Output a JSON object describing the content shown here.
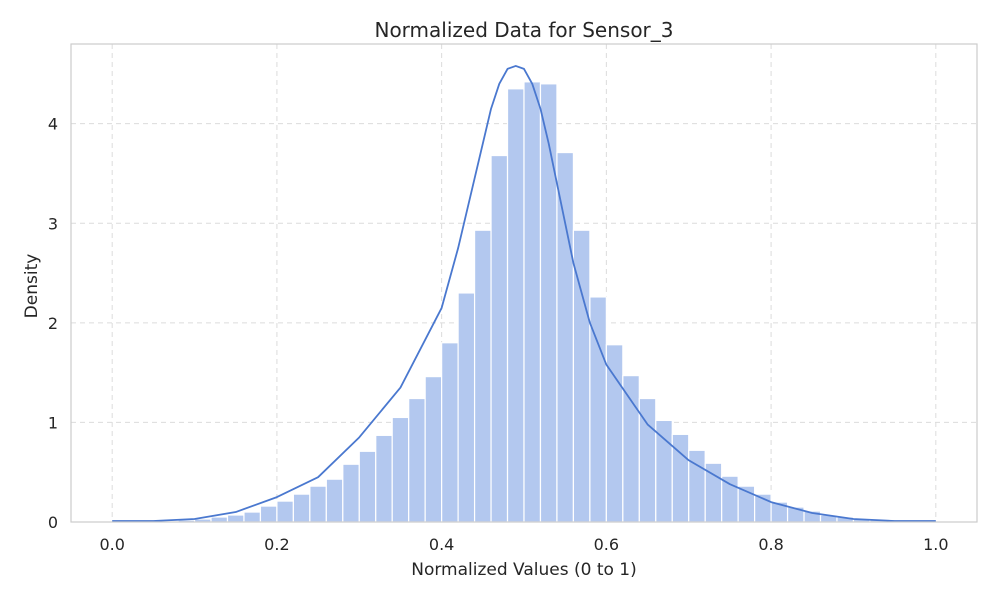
{
  "chart_data": {
    "type": "bar",
    "title": "Normalized Data for Sensor_3",
    "xlabel": "Normalized Values (0 to 1)",
    "ylabel": "Density",
    "xlim": [
      -0.05,
      1.05
    ],
    "ylim": [
      0,
      4.8
    ],
    "x_ticks": [
      0.0,
      0.2,
      0.4,
      0.6,
      0.8,
      1.0
    ],
    "x_tick_labels": [
      "0.0",
      "0.2",
      "0.4",
      "0.6",
      "0.8",
      "1.0"
    ],
    "y_ticks": [
      0,
      1,
      2,
      3,
      4
    ],
    "y_tick_labels": [
      "0",
      "1",
      "2",
      "3",
      "4"
    ],
    "grid": true,
    "colors": {
      "bar": "#b3c8ef",
      "bar_edge": "#ffffff",
      "kde": "#4a78cf",
      "grid": "#dcdcdc",
      "frame": "#cccccc"
    },
    "histogram": {
      "bin_edges": [
        0.0,
        0.02,
        0.04,
        0.06,
        0.08,
        0.1,
        0.12,
        0.14,
        0.16,
        0.18,
        0.2,
        0.22,
        0.24,
        0.26,
        0.28,
        0.3,
        0.32,
        0.34,
        0.36,
        0.38,
        0.4,
        0.42,
        0.44,
        0.46,
        0.48,
        0.5,
        0.52,
        0.54,
        0.56,
        0.58,
        0.6,
        0.62,
        0.64,
        0.66,
        0.68,
        0.7,
        0.72,
        0.74,
        0.76,
        0.78,
        0.8,
        0.82,
        0.84,
        0.86,
        0.88,
        0.9,
        0.92,
        0.94,
        0.96,
        0.98,
        1.0
      ],
      "density": [
        0.005,
        0.006,
        0.008,
        0.01,
        0.02,
        0.03,
        0.05,
        0.07,
        0.1,
        0.16,
        0.21,
        0.28,
        0.36,
        0.43,
        0.58,
        0.71,
        0.87,
        1.05,
        1.24,
        1.46,
        1.8,
        2.3,
        2.93,
        3.68,
        4.35,
        4.42,
        4.4,
        3.71,
        2.93,
        2.26,
        1.78,
        1.47,
        1.24,
        1.02,
        0.88,
        0.72,
        0.59,
        0.46,
        0.36,
        0.28,
        0.2,
        0.15,
        0.11,
        0.07,
        0.05,
        0.03,
        0.02,
        0.01,
        0.008,
        0.005
      ]
    },
    "series": [
      {
        "type": "line",
        "x": [
          0.0,
          0.05,
          0.1,
          0.15,
          0.2,
          0.25,
          0.3,
          0.35,
          0.4,
          0.42,
          0.44,
          0.46,
          0.47,
          0.48,
          0.49,
          0.5,
          0.51,
          0.52,
          0.53,
          0.54,
          0.56,
          0.58,
          0.6,
          0.65,
          0.7,
          0.75,
          0.8,
          0.85,
          0.9,
          0.95,
          1.0
        ],
        "y": [
          0.01,
          0.01,
          0.03,
          0.1,
          0.25,
          0.45,
          0.85,
          1.35,
          2.15,
          2.75,
          3.45,
          4.15,
          4.4,
          4.55,
          4.58,
          4.55,
          4.4,
          4.15,
          3.8,
          3.4,
          2.6,
          2.0,
          1.58,
          0.98,
          0.62,
          0.38,
          0.2,
          0.09,
          0.03,
          0.01,
          0.01
        ]
      }
    ]
  }
}
